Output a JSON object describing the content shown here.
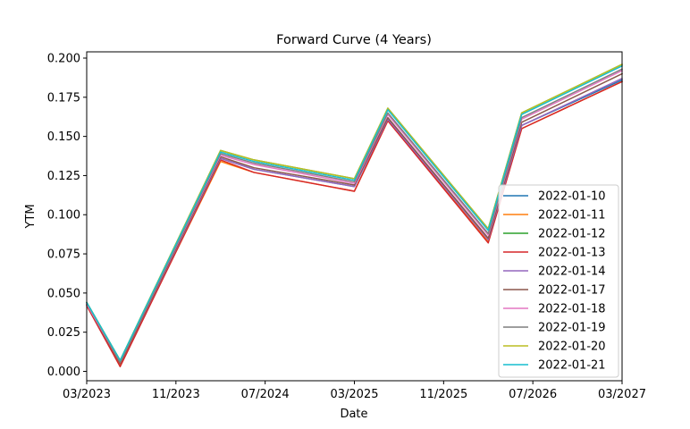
{
  "chart_data": {
    "type": "line",
    "title": "Forward Curve (4 Years)",
    "xlabel": "Date",
    "ylabel": "YTM",
    "x": [
      "2023-03",
      "2023-06",
      "2024-03",
      "2024-06",
      "2025-03",
      "2025-06",
      "2026-03",
      "2026-06",
      "2027-03"
    ],
    "x_ticks": [
      "2023-03",
      "2023-11",
      "2024-07",
      "2025-03",
      "2025-11",
      "2026-07",
      "2027-03"
    ],
    "x_tick_labels": [
      "03/2023",
      "11/2023",
      "07/2024",
      "03/2025",
      "11/2025",
      "07/2026",
      "03/2027"
    ],
    "xlim": [
      "2023-03",
      "2027-03"
    ],
    "ylim": [
      -0.006,
      0.204
    ],
    "y_ticks": [
      0.0,
      0.025,
      0.05,
      0.075,
      0.1,
      0.125,
      0.15,
      0.175,
      0.2
    ],
    "y_tick_labels": [
      "0.000",
      "0.025",
      "0.050",
      "0.075",
      "0.100",
      "0.125",
      "0.150",
      "0.175",
      "0.200"
    ],
    "legend_position": "lower-right",
    "grid": false,
    "series": [
      {
        "name": "2022-01-10",
        "color": "#1f77b4",
        "values": [
          0.043,
          0.005,
          0.136,
          0.129,
          0.118,
          0.161,
          0.084,
          0.157,
          0.186
        ]
      },
      {
        "name": "2022-01-11",
        "color": "#ff7f0e",
        "values": [
          0.042,
          0.004,
          0.134,
          0.127,
          0.115,
          0.16,
          0.083,
          0.155,
          0.185
        ]
      },
      {
        "name": "2022-01-12",
        "color": "#2ca02c",
        "values": [
          0.044,
          0.007,
          0.141,
          0.135,
          0.123,
          0.168,
          0.091,
          0.165,
          0.196
        ]
      },
      {
        "name": "2022-01-13",
        "color": "#d62728",
        "values": [
          0.042,
          0.003,
          0.135,
          0.127,
          0.115,
          0.16,
          0.082,
          0.155,
          0.185
        ]
      },
      {
        "name": "2022-01-14",
        "color": "#9467bd",
        "values": [
          0.043,
          0.005,
          0.136,
          0.129,
          0.118,
          0.161,
          0.084,
          0.157,
          0.187
        ]
      },
      {
        "name": "2022-01-17",
        "color": "#8c564b",
        "values": [
          0.043,
          0.005,
          0.137,
          0.13,
          0.119,
          0.162,
          0.085,
          0.159,
          0.19
        ]
      },
      {
        "name": "2022-01-18",
        "color": "#e377c2",
        "values": [
          0.043,
          0.006,
          0.138,
          0.132,
          0.12,
          0.164,
          0.087,
          0.161,
          0.192
        ]
      },
      {
        "name": "2022-01-19",
        "color": "#7f7f7f",
        "values": [
          0.044,
          0.006,
          0.139,
          0.133,
          0.121,
          0.165,
          0.088,
          0.162,
          0.193
        ]
      },
      {
        "name": "2022-01-20",
        "color": "#bcbd22",
        "values": [
          0.044,
          0.007,
          0.141,
          0.135,
          0.123,
          0.168,
          0.091,
          0.165,
          0.196
        ]
      },
      {
        "name": "2022-01-21",
        "color": "#17becf",
        "values": [
          0.044,
          0.007,
          0.14,
          0.134,
          0.122,
          0.167,
          0.09,
          0.164,
          0.195
        ]
      }
    ]
  }
}
